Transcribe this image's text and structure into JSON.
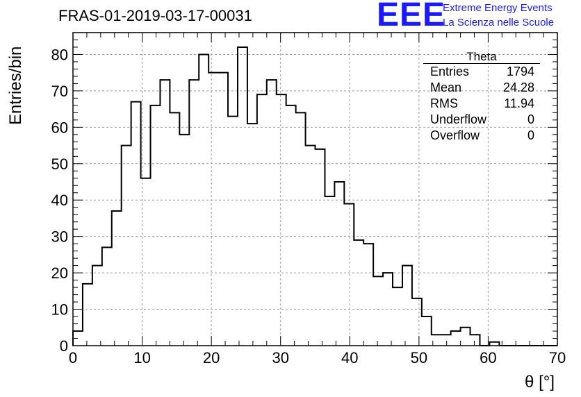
{
  "header": {
    "title": "FRAS-01-2019-03-17-00031",
    "logo_text": "EEE",
    "logo_line1": "Extreme Energy Events",
    "logo_line2": "La Scienza nelle Scuole",
    "logo_color": "#1a1aff"
  },
  "stats": {
    "title": "Theta",
    "rows": [
      {
        "label": "Entries",
        "value": "1794"
      },
      {
        "label": "Mean",
        "value": "24.28"
      },
      {
        "label": "RMS",
        "value": "11.94"
      },
      {
        "label": "Underflow",
        "value": "0"
      },
      {
        "label": "Overflow",
        "value": "0"
      }
    ]
  },
  "chart_data": {
    "type": "bar",
    "histogram": true,
    "title": "FRAS-01-2019-03-17-00031",
    "xlabel": "θ [°]",
    "ylabel": "Entries/bin",
    "xlim": [
      0,
      70
    ],
    "ylim": [
      0,
      86
    ],
    "x_ticks": [
      0,
      10,
      20,
      30,
      40,
      50,
      60,
      70
    ],
    "y_ticks": [
      0,
      10,
      20,
      30,
      40,
      50,
      60,
      70,
      80
    ],
    "grid": true,
    "legend": "none",
    "bin_width": 1.4,
    "bin_start": 0,
    "values": [
      4,
      17,
      22,
      27,
      37,
      55,
      67,
      46,
      66,
      73,
      64,
      58,
      73,
      80,
      75,
      75,
      63,
      82,
      61,
      69,
      73,
      69,
      66,
      64,
      55,
      54,
      41,
      45,
      39,
      29,
      28,
      19,
      20,
      16,
      22,
      13,
      8,
      3,
      3,
      4,
      5,
      3,
      0,
      1,
      0,
      0,
      0,
      0,
      0,
      0
    ]
  }
}
